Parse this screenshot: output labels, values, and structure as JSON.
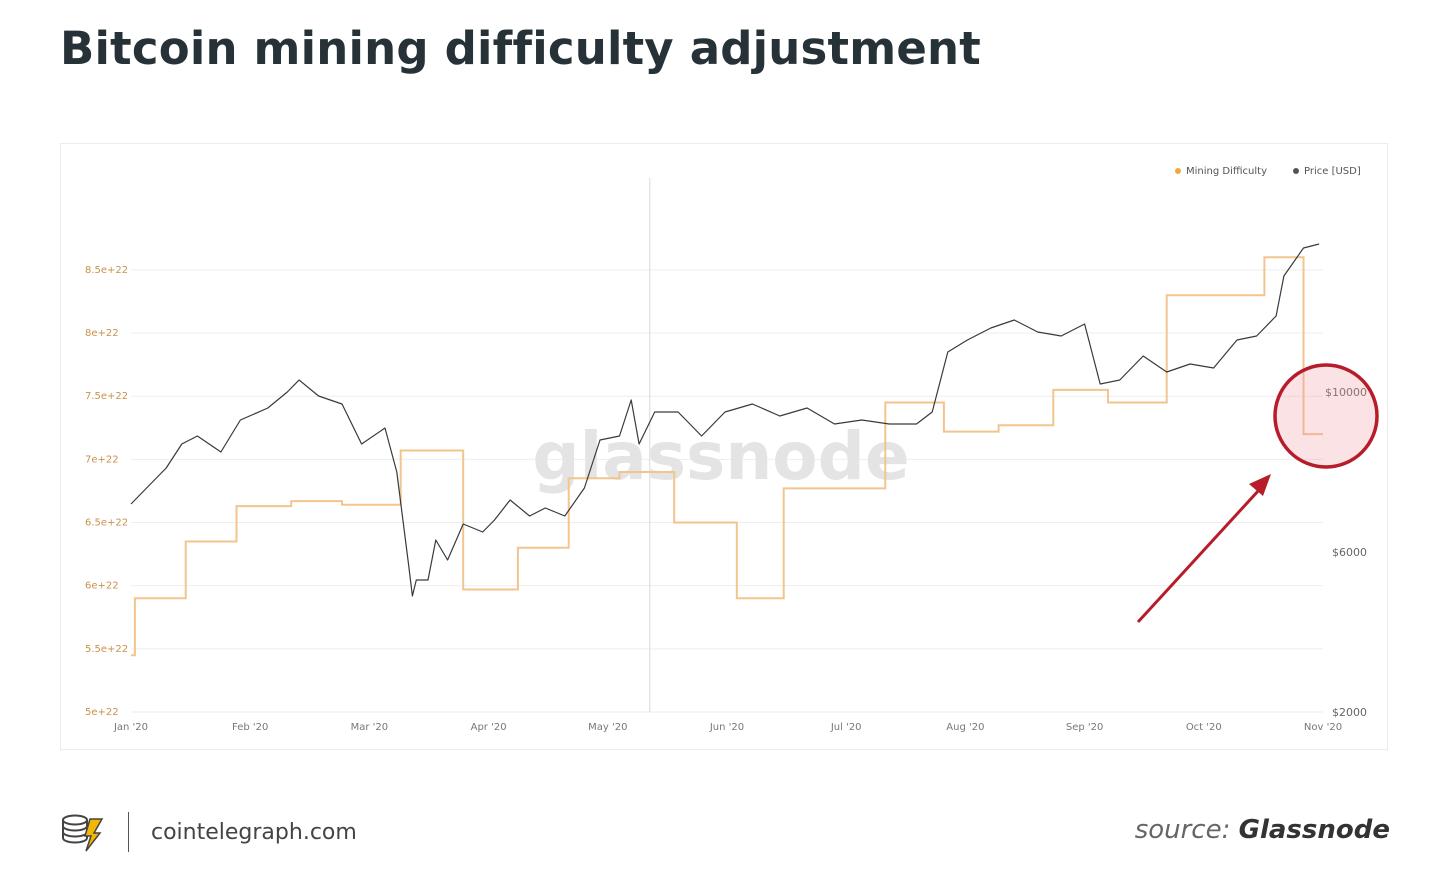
{
  "header": {
    "title": "Bitcoin mining difficulty adjustment"
  },
  "footer": {
    "site": "cointelegraph.com",
    "source_prefix": "source:",
    "source_name": "Glassnode"
  },
  "watermark": "glassnode",
  "colors": {
    "difficulty": "#f2c58e",
    "price": "#3a3a3a",
    "highlight": "#b71c2a",
    "text": "#263238"
  },
  "chart_data": {
    "type": "line",
    "legend": {
      "placement": "top-right",
      "entries": [
        "Mining Difficulty",
        "Price [USD]"
      ]
    },
    "x_ticks": [
      "Jan '20",
      "Feb '20",
      "Mar '20",
      "Apr '20",
      "May '20",
      "Jun '20",
      "Jul '20",
      "Aug '20",
      "Sep '20",
      "Oct '20",
      "Nov '20"
    ],
    "x_range": [
      "2020-01-01",
      "2020-11-01"
    ],
    "y_left": {
      "ticks": [
        5e+22,
        5.5e+22,
        6e+22,
        6.5e+22,
        7e+22,
        7.5e+22,
        8e+22,
        8.5e+22
      ],
      "labels": [
        "5e+22",
        "5.5e+22",
        "6e+22",
        "6.5e+22",
        "7e+22",
        "7.5e+22",
        "8e+22",
        "8.5e+22"
      ],
      "range": [
        5e+22,
        8.8e+22
      ]
    },
    "y_right": {
      "ticks": [
        2000,
        6000,
        10000
      ],
      "labels": [
        "$2000",
        "$6000",
        "$10000"
      ],
      "range": [
        2000,
        14000
      ]
    },
    "series": [
      {
        "name": "Mining Difficulty",
        "axis": "left",
        "step": true,
        "points": [
          [
            "2020-01-01",
            5.45e+22
          ],
          [
            "2020-01-02",
            5.9e+22
          ],
          [
            "2020-01-15",
            6.35e+22
          ],
          [
            "2020-01-28",
            6.63e+22
          ],
          [
            "2020-02-11",
            6.67e+22
          ],
          [
            "2020-02-24",
            6.64e+22
          ],
          [
            "2020-03-10",
            7.07e+22
          ],
          [
            "2020-03-26",
            5.97e+22
          ],
          [
            "2020-04-09",
            6.3e+22
          ],
          [
            "2020-04-22",
            6.85e+22
          ],
          [
            "2020-05-05",
            6.9e+22
          ],
          [
            "2020-05-19",
            6.5e+22
          ],
          [
            "2020-06-04",
            5.9e+22
          ],
          [
            "2020-06-16",
            6.77e+22
          ],
          [
            "2020-06-30",
            6.77e+22
          ],
          [
            "2020-07-12",
            7.45e+22
          ],
          [
            "2020-07-27",
            7.22e+22
          ],
          [
            "2020-08-10",
            7.27e+22
          ],
          [
            "2020-08-24",
            7.55e+22
          ],
          [
            "2020-09-07",
            7.45e+22
          ],
          [
            "2020-09-22",
            8.3e+22
          ],
          [
            "2020-10-17",
            8.6e+22
          ],
          [
            "2020-10-27",
            7.2e+22
          ],
          [
            "2020-11-01",
            7.2e+22
          ]
        ]
      },
      {
        "name": "Price [USD]",
        "axis": "right",
        "points": [
          [
            "2020-01-01",
            7200
          ],
          [
            "2020-01-06",
            7700
          ],
          [
            "2020-01-10",
            8100
          ],
          [
            "2020-01-14",
            8700
          ],
          [
            "2020-01-18",
            8900
          ],
          [
            "2020-01-24",
            8500
          ],
          [
            "2020-01-29",
            9300
          ],
          [
            "2020-02-05",
            9600
          ],
          [
            "2020-02-10",
            10000
          ],
          [
            "2020-02-13",
            10300
          ],
          [
            "2020-02-18",
            9900
          ],
          [
            "2020-02-24",
            9700
          ],
          [
            "2020-02-29",
            8700
          ],
          [
            "2020-03-06",
            9100
          ],
          [
            "2020-03-09",
            8000
          ],
          [
            "2020-03-12",
            5700
          ],
          [
            "2020-03-13",
            4900
          ],
          [
            "2020-03-14",
            5300
          ],
          [
            "2020-03-17",
            5300
          ],
          [
            "2020-03-19",
            6300
          ],
          [
            "2020-03-22",
            5800
          ],
          [
            "2020-03-26",
            6700
          ],
          [
            "2020-03-31",
            6500
          ],
          [
            "2020-04-03",
            6800
          ],
          [
            "2020-04-07",
            7300
          ],
          [
            "2020-04-12",
            6900
          ],
          [
            "2020-04-16",
            7100
          ],
          [
            "2020-04-21",
            6900
          ],
          [
            "2020-04-26",
            7600
          ],
          [
            "2020-04-30",
            8800
          ],
          [
            "2020-05-05",
            8900
          ],
          [
            "2020-05-08",
            9800
          ],
          [
            "2020-05-10",
            8700
          ],
          [
            "2020-05-14",
            9500
          ],
          [
            "2020-05-20",
            9500
          ],
          [
            "2020-05-26",
            8900
          ],
          [
            "2020-06-01",
            9500
          ],
          [
            "2020-06-08",
            9700
          ],
          [
            "2020-06-15",
            9400
          ],
          [
            "2020-06-22",
            9600
          ],
          [
            "2020-06-29",
            9200
          ],
          [
            "2020-07-06",
            9300
          ],
          [
            "2020-07-13",
            9200
          ],
          [
            "2020-07-20",
            9200
          ],
          [
            "2020-07-24",
            9500
          ],
          [
            "2020-07-28",
            11000
          ],
          [
            "2020-08-02",
            11300
          ],
          [
            "2020-08-08",
            11600
          ],
          [
            "2020-08-14",
            11800
          ],
          [
            "2020-08-20",
            11500
          ],
          [
            "2020-08-26",
            11400
          ],
          [
            "2020-09-01",
            11700
          ],
          [
            "2020-09-05",
            10200
          ],
          [
            "2020-09-10",
            10300
          ],
          [
            "2020-09-16",
            10900
          ],
          [
            "2020-09-22",
            10500
          ],
          [
            "2020-09-28",
            10700
          ],
          [
            "2020-10-04",
            10600
          ],
          [
            "2020-10-10",
            11300
          ],
          [
            "2020-10-15",
            11400
          ],
          [
            "2020-10-20",
            11900
          ],
          [
            "2020-10-22",
            12900
          ],
          [
            "2020-10-27",
            13600
          ],
          [
            "2020-10-31",
            13700
          ]
        ]
      }
    ]
  }
}
